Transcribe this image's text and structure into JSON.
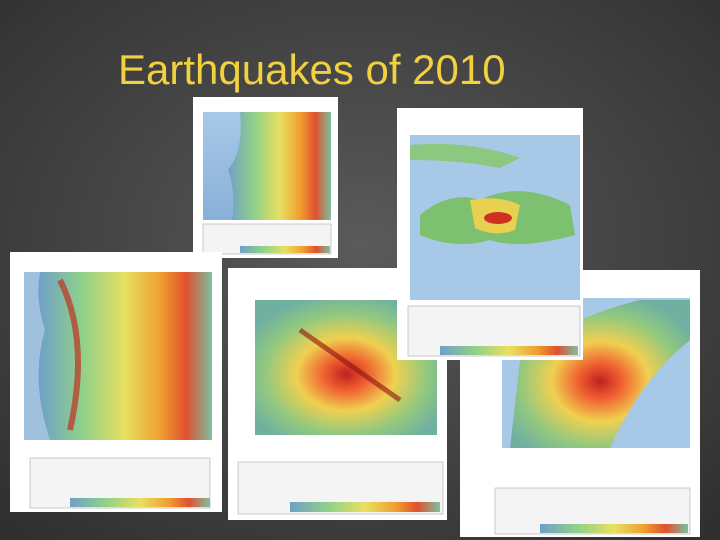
{
  "slide": {
    "title": "Earthquakes of 2010"
  }
}
